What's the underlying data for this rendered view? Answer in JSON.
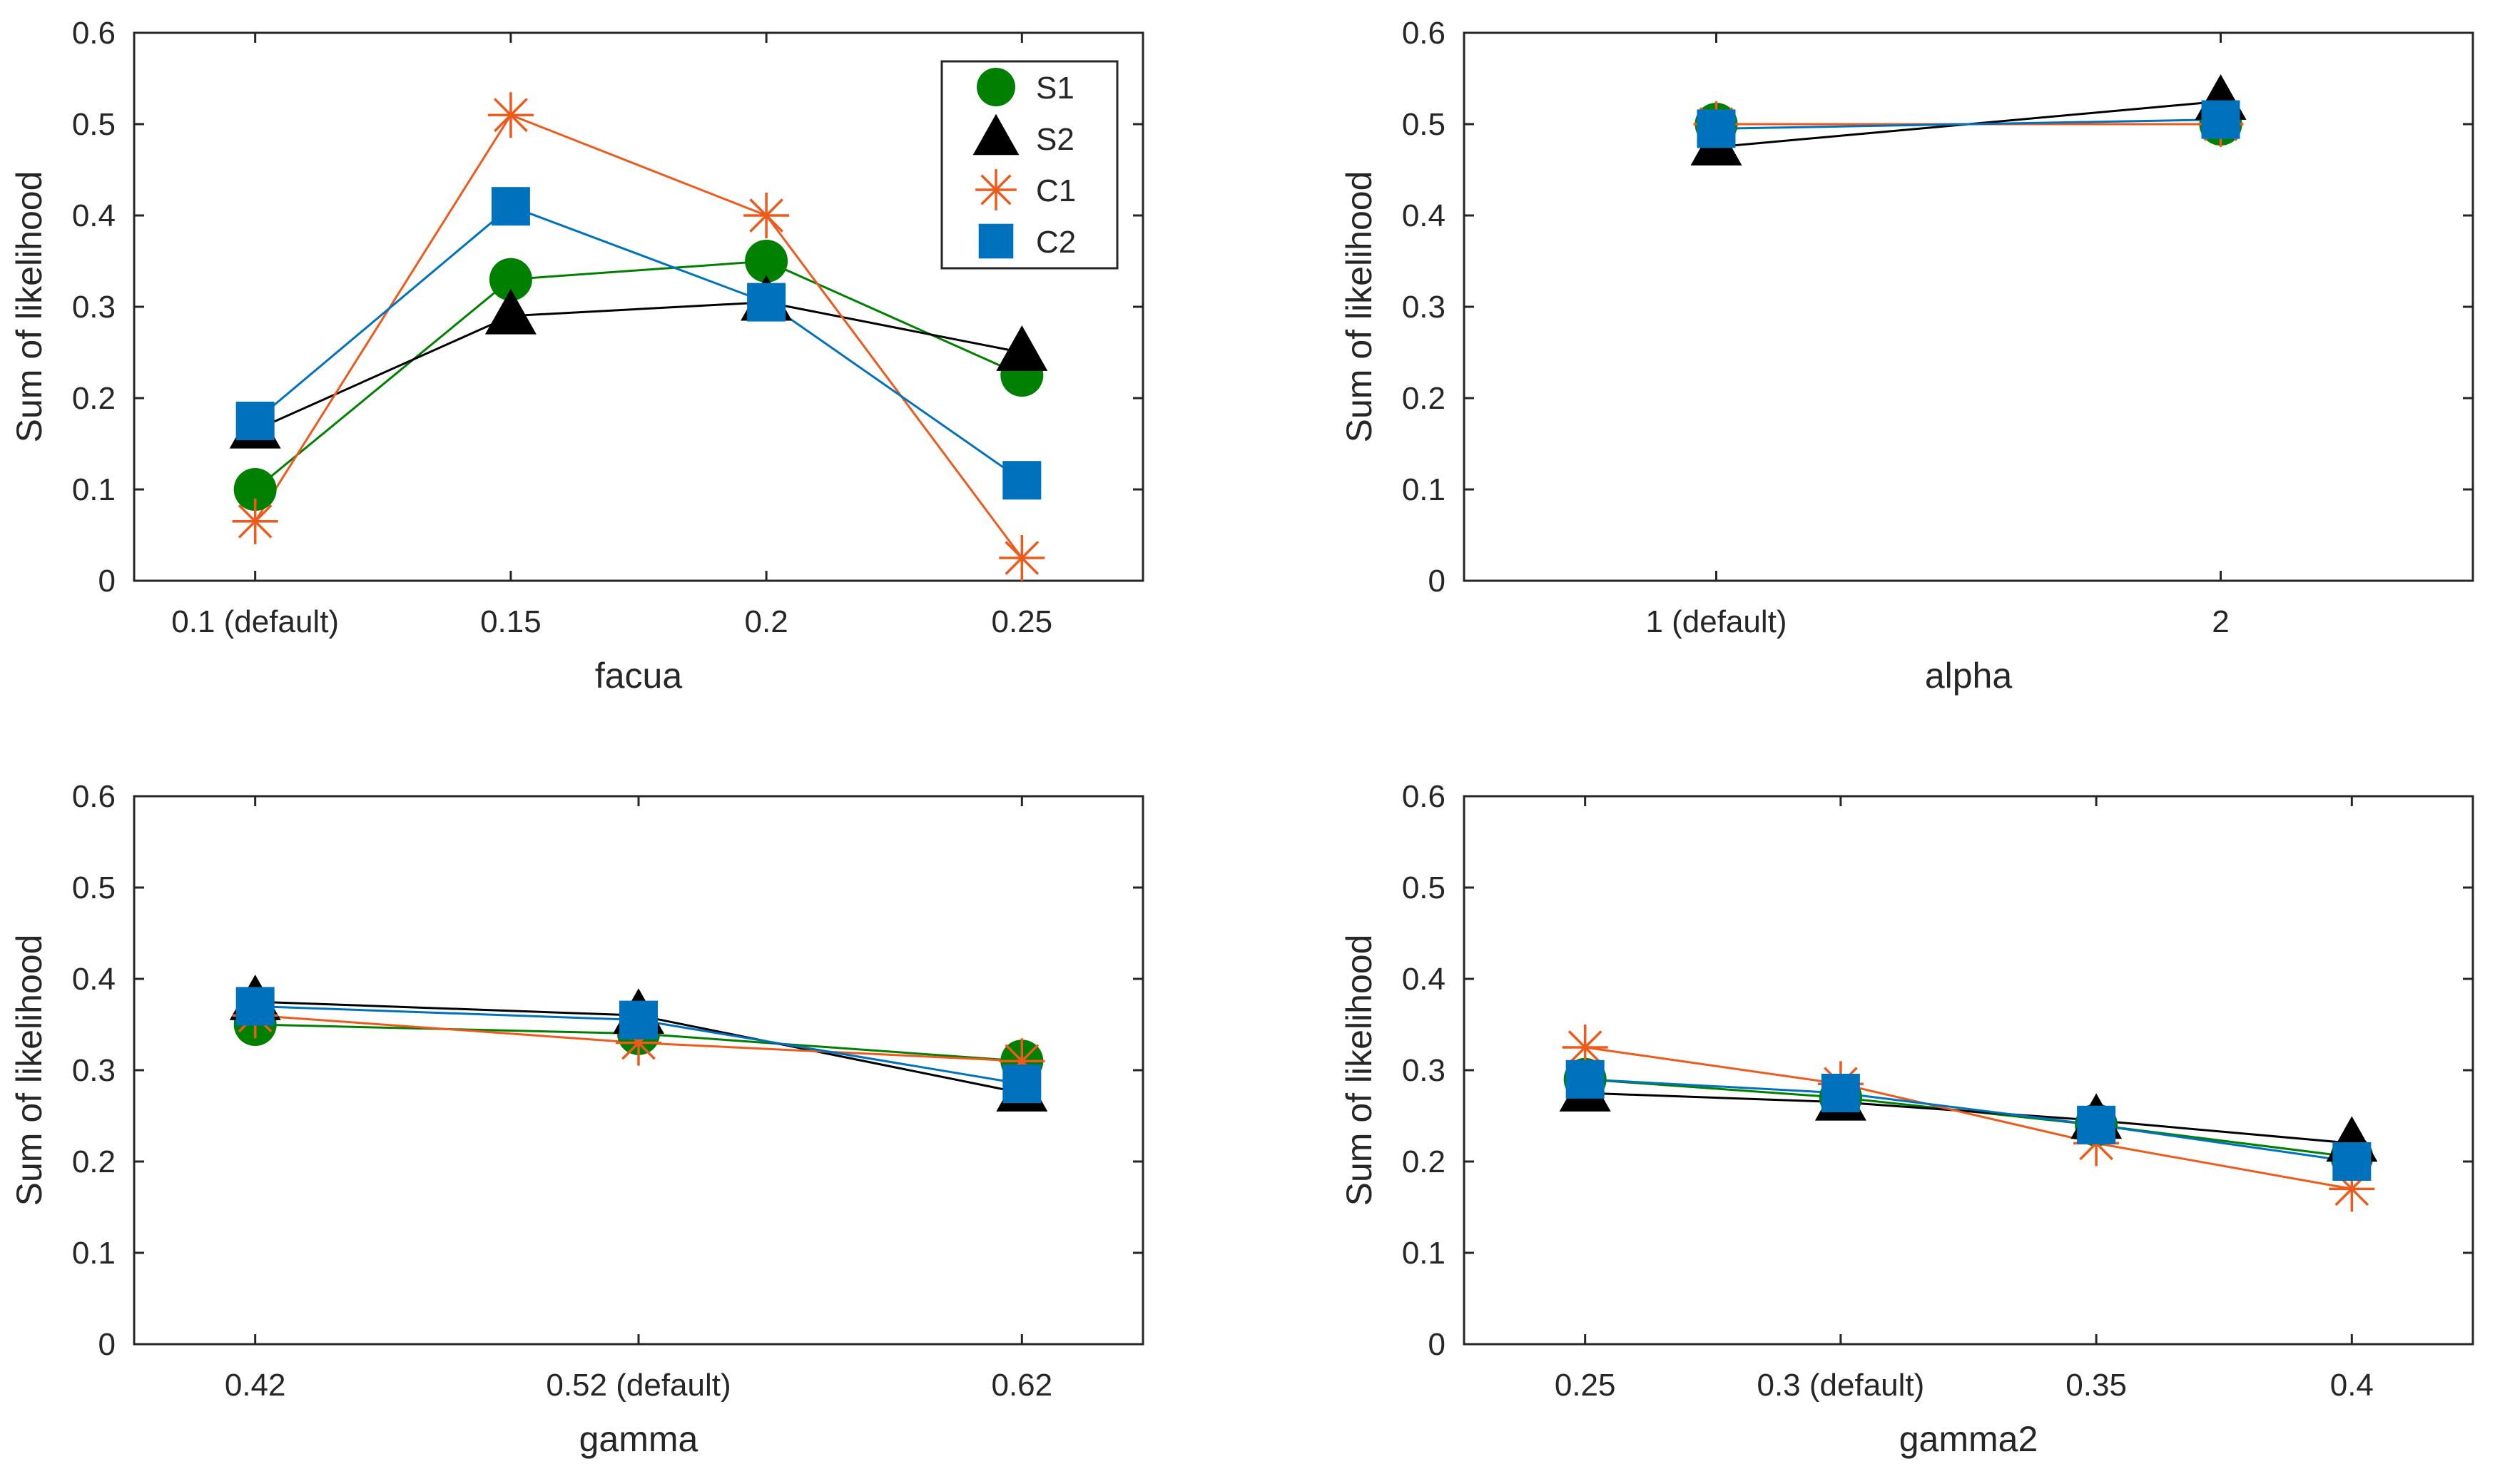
{
  "figure": {
    "series_styles": [
      {
        "name": "S1",
        "marker": "circle",
        "color": "#008000"
      },
      {
        "name": "S2",
        "marker": "triangle",
        "color": "#000000"
      },
      {
        "name": "C1",
        "marker": "asterisk",
        "color": "#ed5a1c"
      },
      {
        "name": "C2",
        "marker": "square",
        "color": "#0072bd"
      }
    ],
    "legend": {
      "entries": [
        "S1",
        "S2",
        "C1",
        "C2"
      ],
      "location": "top-right of first panel"
    }
  },
  "chart_data": [
    {
      "type": "line",
      "xlabel": "facua",
      "ylabel": "Sum of likelihood",
      "ylim": [
        0,
        0.6
      ],
      "yticks": [
        "0",
        "0.1",
        "0.2",
        "0.3",
        "0.4",
        "0.5",
        "0.6"
      ],
      "categories": [
        "0.1 (default)",
        "0.15",
        "0.2",
        "0.25"
      ],
      "series": [
        {
          "name": "S1",
          "values": [
            0.1,
            0.33,
            0.35,
            0.225
          ]
        },
        {
          "name": "S2",
          "values": [
            0.165,
            0.29,
            0.305,
            0.25
          ]
        },
        {
          "name": "C1",
          "values": [
            0.065,
            0.51,
            0.4,
            0.025
          ]
        },
        {
          "name": "C2",
          "values": [
            0.175,
            0.41,
            0.305,
            0.11
          ]
        }
      ]
    },
    {
      "type": "line",
      "xlabel": "alpha",
      "ylabel": "Sum of likelihood",
      "ylim": [
        0,
        0.6
      ],
      "yticks": [
        "0",
        "0.1",
        "0.2",
        "0.3",
        "0.4",
        "0.5",
        "0.6"
      ],
      "categories": [
        "1 (default)",
        "2"
      ],
      "series": [
        {
          "name": "S1",
          "values": [
            0.5,
            0.5
          ]
        },
        {
          "name": "S2",
          "values": [
            0.475,
            0.525
          ]
        },
        {
          "name": "C1",
          "values": [
            0.5,
            0.5
          ]
        },
        {
          "name": "C2",
          "values": [
            0.495,
            0.505
          ]
        }
      ]
    },
    {
      "type": "line",
      "xlabel": "gamma",
      "ylabel": "Sum of likelihood",
      "ylim": [
        0,
        0.6
      ],
      "yticks": [
        "0",
        "0.1",
        "0.2",
        "0.3",
        "0.4",
        "0.5",
        "0.6"
      ],
      "categories": [
        "0.42",
        "0.52 (default)",
        "0.62"
      ],
      "series": [
        {
          "name": "S1",
          "values": [
            0.35,
            0.34,
            0.31
          ]
        },
        {
          "name": "S2",
          "values": [
            0.375,
            0.36,
            0.275
          ]
        },
        {
          "name": "C1",
          "values": [
            0.36,
            0.33,
            0.31
          ]
        },
        {
          "name": "C2",
          "values": [
            0.37,
            0.355,
            0.285
          ]
        }
      ]
    },
    {
      "type": "line",
      "xlabel": "gamma2",
      "ylabel": "Sum of likelihood",
      "ylim": [
        0,
        0.6
      ],
      "yticks": [
        "0",
        "0.1",
        "0.2",
        "0.3",
        "0.4",
        "0.5",
        "0.6"
      ],
      "categories": [
        "0.25",
        "0.3 (default)",
        "0.35",
        "0.4"
      ],
      "series": [
        {
          "name": "S1",
          "values": [
            0.29,
            0.27,
            0.24,
            0.205
          ]
        },
        {
          "name": "S2",
          "values": [
            0.275,
            0.265,
            0.245,
            0.22
          ]
        },
        {
          "name": "C1",
          "values": [
            0.325,
            0.285,
            0.22,
            0.17
          ]
        },
        {
          "name": "C2",
          "values": [
            0.29,
            0.275,
            0.24,
            0.2
          ]
        }
      ]
    }
  ]
}
